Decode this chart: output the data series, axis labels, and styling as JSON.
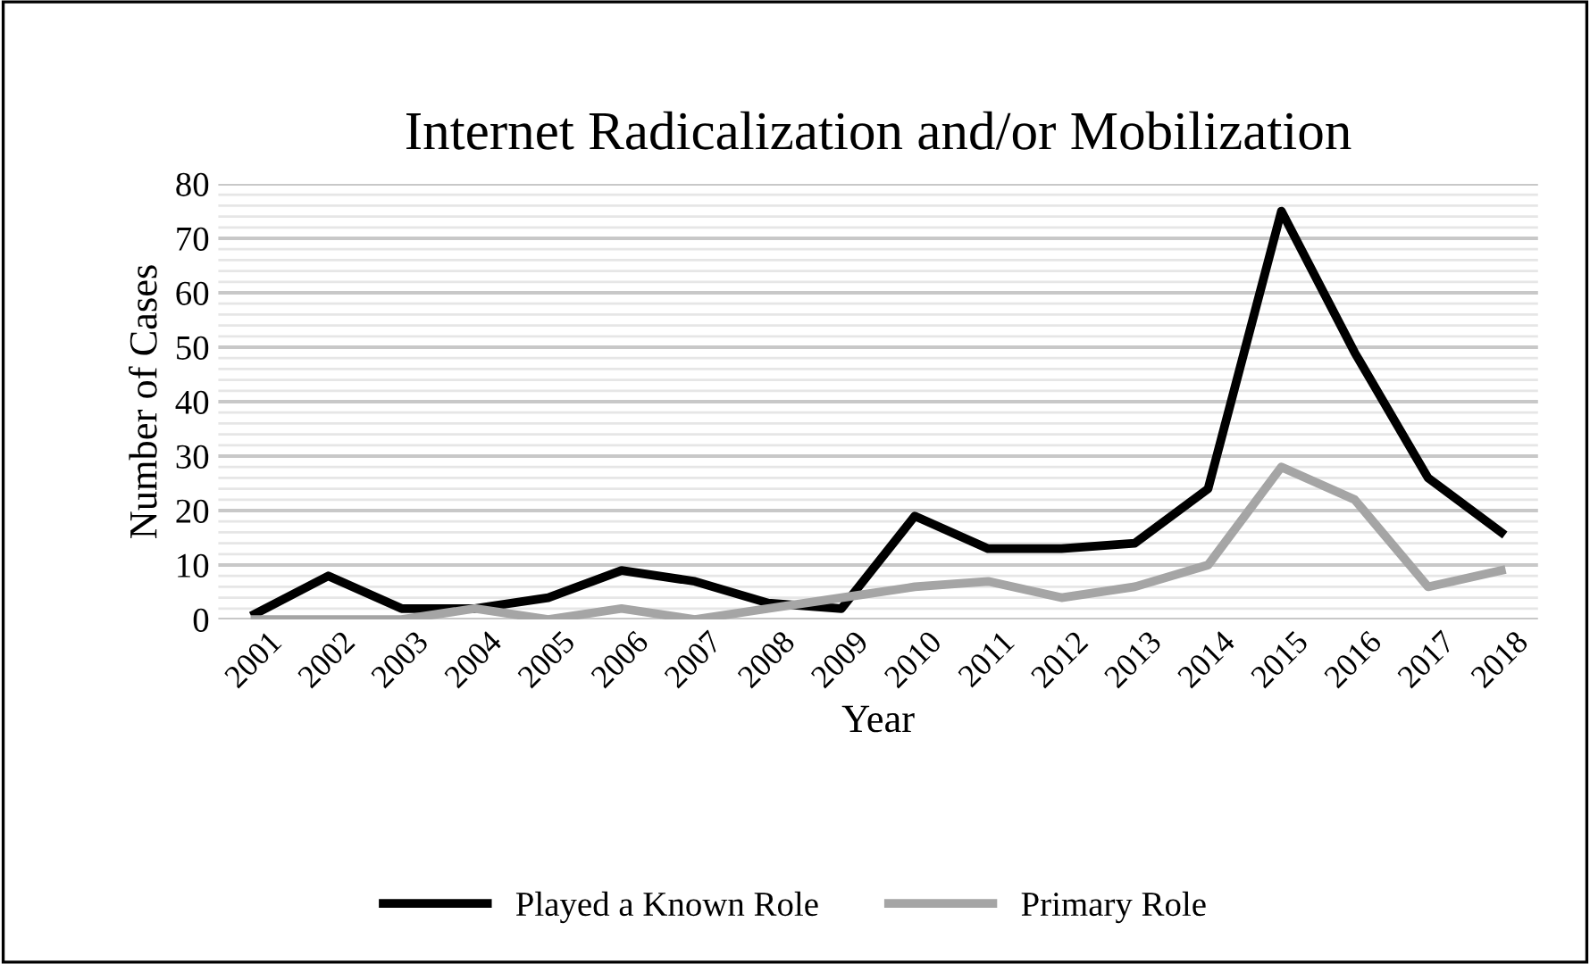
{
  "chart_data": {
    "type": "line",
    "title": "Internet Radicalization and/or Mobilization",
    "xlabel": "Year",
    "ylabel": "Number of Cases",
    "categories": [
      "2001",
      "2002",
      "2003",
      "2004",
      "2005",
      "2006",
      "2007",
      "2008",
      "2009",
      "2010",
      "2011",
      "2012",
      "2013",
      "2014",
      "2015",
      "2016",
      "2017",
      "2018"
    ],
    "series": [
      {
        "name": "Played a Known Role",
        "color": "#000000",
        "values": [
          1,
          8,
          2,
          2,
          4,
          9,
          7,
          3,
          2,
          19,
          13,
          13,
          14,
          24,
          75,
          49,
          26,
          16
        ]
      },
      {
        "name": "Primary Role",
        "color": "#a5a5a5",
        "values": [
          0,
          0,
          0,
          2,
          0,
          2,
          0,
          2,
          4,
          6,
          7,
          4,
          6,
          10,
          28,
          22,
          6,
          9
        ]
      }
    ],
    "ylim": [
      0,
      80
    ],
    "yticks": [
      0,
      {
        "value": 2,
        "label": null
      },
      {
        "value": 4,
        "label": null
      },
      {
        "value": 6,
        "label": null
      },
      {
        "value": 8,
        "label": null
      },
      10,
      {
        "value": 12,
        "label": null
      },
      {
        "value": 14,
        "label": null
      },
      {
        "value": 16,
        "label": null
      },
      {
        "value": 18,
        "label": null
      },
      20,
      {
        "value": 22,
        "label": null
      },
      {
        "value": 24,
        "label": null
      },
      {
        "value": 26,
        "label": null
      },
      {
        "value": 28,
        "label": null
      },
      30,
      {
        "value": 32,
        "label": null
      },
      {
        "value": 34,
        "label": null
      },
      {
        "value": 36,
        "label": null
      },
      {
        "value": 38,
        "label": null
      },
      40,
      {
        "value": 42,
        "label": null
      },
      {
        "value": 44,
        "label": null
      },
      {
        "value": 46,
        "label": null
      },
      {
        "value": 48,
        "label": null
      },
      50,
      {
        "value": 52,
        "label": null
      },
      {
        "value": 54,
        "label": null
      },
      {
        "value": 56,
        "label": null
      },
      {
        "value": 58,
        "label": null
      },
      60,
      {
        "value": 62,
        "label": null
      },
      {
        "value": 64,
        "label": null
      },
      {
        "value": 66,
        "label": null
      },
      {
        "value": 68,
        "label": null
      },
      70,
      {
        "value": 72,
        "label": null
      },
      {
        "value": 74,
        "label": null
      },
      {
        "value": 76,
        "label": null
      },
      {
        "value": 78,
        "label": null
      },
      80
    ],
    "grid": "y",
    "legend": "bottom",
    "marker": "none",
    "line_style": "solid"
  }
}
